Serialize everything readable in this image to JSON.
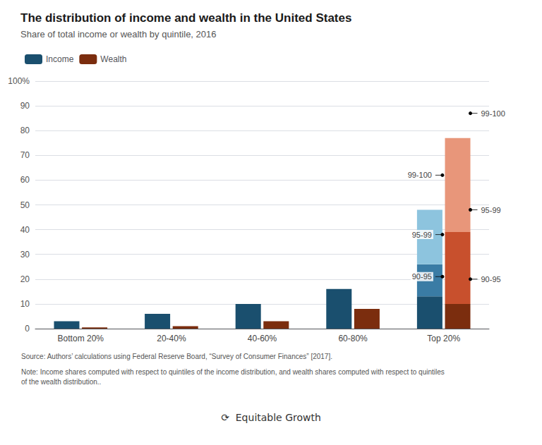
{
  "chart_data": {
    "type": "bar",
    "title": "The distribution of income and wealth in the United States",
    "subtitle": "Share of total income or wealth by quintile, 2016",
    "categories": [
      "Bottom 20%",
      "20-40%",
      "40-60%",
      "60-80%",
      "Top 20%"
    ],
    "series": [
      {
        "name": "Income",
        "color": "#1a4f6e",
        "values": [
          3,
          6,
          10,
          16,
          null
        ],
        "segments": [
          13,
          13,
          22
        ],
        "segment_colors": [
          "#1a4f6e",
          "#3a7ca5",
          "#8dc4de"
        ],
        "dot_values": [
          21,
          38,
          62
        ]
      },
      {
        "name": "Wealth",
        "color": "#7b2d0e",
        "values": [
          0.5,
          1.0,
          3.0,
          8.0,
          null
        ],
        "segments": [
          10,
          29,
          38
        ],
        "segment_colors": [
          "#7b2d0e",
          "#c8502d",
          "#e8967a"
        ],
        "dot_values": [
          20,
          48,
          87
        ]
      }
    ],
    "segment_category": "Top 20%",
    "segment_labels": [
      "90-95",
      "95-99",
      "99-100"
    ],
    "stacked": true,
    "ylim": [
      0,
      100
    ],
    "yticks": [
      0,
      10,
      20,
      30,
      40,
      50,
      60,
      70,
      80,
      90,
      {
        "value": 100,
        "label": "100%"
      }
    ],
    "grid": true,
    "legend": "top left",
    "source": "Source: Authors’ calculations using Federal Reserve Board, “Survey of Consumer Finances” [2017].",
    "note": "Note: Income shares computed with respect to quintiles of the income distribution, and wealth shares computed with respect to quintiles\nof the wealth distribution..",
    "credit": "⟳  Equitable Growth"
  }
}
